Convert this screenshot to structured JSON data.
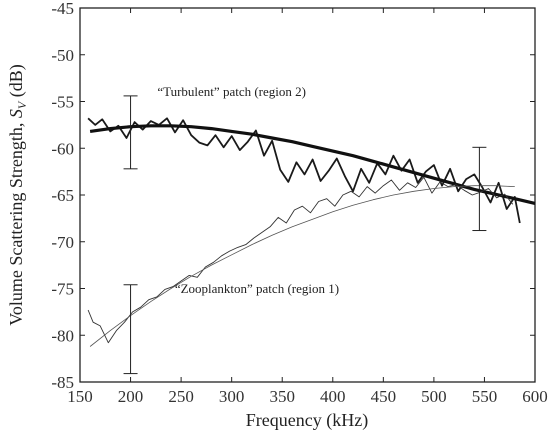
{
  "chart_data": {
    "type": "line",
    "xlabel": "Frequency (kHz)",
    "ylabel": {
      "prefix": "Volume Scattering Strength, ",
      "symbol": "S",
      "subscript": "V",
      "suffix": " (dB)"
    },
    "xlim": [
      150,
      600
    ],
    "ylim": [
      -85,
      -45
    ],
    "xticks": [
      150,
      200,
      250,
      300,
      350,
      400,
      450,
      500,
      550,
      600
    ],
    "yticks": [
      -45,
      -50,
      -55,
      -60,
      -65,
      -70,
      -75,
      -80,
      -85
    ],
    "grid": false,
    "series": [
      {
        "style": "thick-noisy",
        "x": [
          158,
          165,
          172,
          180,
          188,
          196,
          204,
          212,
          220,
          228,
          236,
          244,
          252,
          260,
          268,
          276,
          284,
          292,
          300,
          308,
          316,
          324,
          332,
          340,
          348,
          356,
          364,
          372,
          380,
          388,
          396,
          404,
          412,
          420,
          428,
          436,
          444,
          452,
          460,
          468,
          476,
          484,
          492,
          500,
          508,
          516,
          524,
          532,
          540,
          548,
          556,
          564,
          572,
          580,
          585
        ],
        "y": [
          -56.8,
          -57.5,
          -56.9,
          -58.2,
          -57.6,
          -58.9,
          -57.2,
          -58.0,
          -57.1,
          -57.5,
          -56.8,
          -58.3,
          -57.0,
          -58.6,
          -59.4,
          -59.7,
          -58.6,
          -59.9,
          -58.7,
          -60.2,
          -59.3,
          -58.1,
          -60.8,
          -59.2,
          -62.3,
          -63.6,
          -61.5,
          -62.8,
          -61.2,
          -63.5,
          -62.4,
          -61.1,
          -63.0,
          -64.6,
          -62.2,
          -63.7,
          -61.6,
          -62.8,
          -60.8,
          -62.4,
          -61.2,
          -63.7,
          -62.5,
          -61.8,
          -64.0,
          -62.2,
          -64.6,
          -63.3,
          -62.8,
          -64.2,
          -65.8,
          -63.7,
          -66.5,
          -65.2,
          -68.0
        ]
      },
      {
        "style": "thick-fit",
        "x": [
          160,
          180,
          200,
          220,
          240,
          260,
          280,
          300,
          320,
          340,
          360,
          380,
          400,
          420,
          440,
          460,
          480,
          500,
          520,
          540,
          560,
          580,
          600
        ],
        "y": [
          -58.2,
          -57.9,
          -57.7,
          -57.6,
          -57.6,
          -57.7,
          -57.9,
          -58.2,
          -58.5,
          -58.9,
          -59.3,
          -59.8,
          -60.3,
          -60.8,
          -61.4,
          -62.0,
          -62.6,
          -63.2,
          -63.8,
          -64.4,
          -64.9,
          -65.4,
          -65.9
        ]
      },
      {
        "style": "thin-noisy",
        "x": [
          158,
          163,
          170,
          178,
          186,
          194,
          202,
          210,
          218,
          226,
          234,
          242,
          250,
          258,
          266,
          274,
          282,
          290,
          298,
          306,
          314,
          322,
          330,
          338,
          346,
          354,
          362,
          370,
          378,
          386,
          394,
          402,
          410,
          418,
          426,
          434,
          442,
          450,
          458,
          466,
          474,
          482,
          490,
          498,
          506,
          514,
          522,
          530,
          538,
          546,
          554,
          562,
          570,
          578
        ],
        "y": [
          -77.3,
          -78.6,
          -79.0,
          -80.8,
          -79.5,
          -78.6,
          -77.5,
          -77.0,
          -76.2,
          -75.9,
          -75.1,
          -74.8,
          -74.2,
          -73.6,
          -73.8,
          -72.7,
          -72.2,
          -71.5,
          -71.0,
          -70.6,
          -70.3,
          -69.6,
          -69.0,
          -68.4,
          -67.4,
          -68.0,
          -66.6,
          -66.2,
          -66.9,
          -65.7,
          -65.4,
          -66.2,
          -65.0,
          -64.6,
          -65.2,
          -64.1,
          -64.8,
          -64.0,
          -63.4,
          -64.5,
          -63.7,
          -64.2,
          -63.1,
          -64.8,
          -63.6,
          -64.1,
          -63.9,
          -64.5,
          -65.0,
          -64.7,
          -64.3,
          -65.3,
          -64.9,
          -66.0
        ]
      },
      {
        "style": "thin-fit",
        "x": [
          160,
          180,
          200,
          220,
          240,
          260,
          280,
          300,
          320,
          340,
          360,
          380,
          400,
          420,
          440,
          460,
          480,
          500,
          520,
          540,
          560,
          580
        ],
        "y": [
          -81.2,
          -79.5,
          -77.9,
          -76.4,
          -75.0,
          -73.7,
          -72.5,
          -71.4,
          -70.3,
          -69.3,
          -68.4,
          -67.6,
          -66.8,
          -66.1,
          -65.5,
          -65.0,
          -64.6,
          -64.3,
          -64.1,
          -64.0,
          -64.0,
          -64.1
        ]
      }
    ],
    "error_bars": [
      {
        "x": 200,
        "ylow": -62.2,
        "yhigh": -54.4
      },
      {
        "x": 200,
        "ylow": -84.1,
        "yhigh": -74.6
      },
      {
        "x": 545,
        "ylow": -68.8,
        "yhigh": -59.9
      }
    ],
    "annotations": [
      {
        "text": "“Turbulent” patch (region 2)",
        "x": 300,
        "y": -54.4
      },
      {
        "text": "“Zooplankton” patch (region 1)",
        "x": 325,
        "y": -75.5
      }
    ]
  }
}
